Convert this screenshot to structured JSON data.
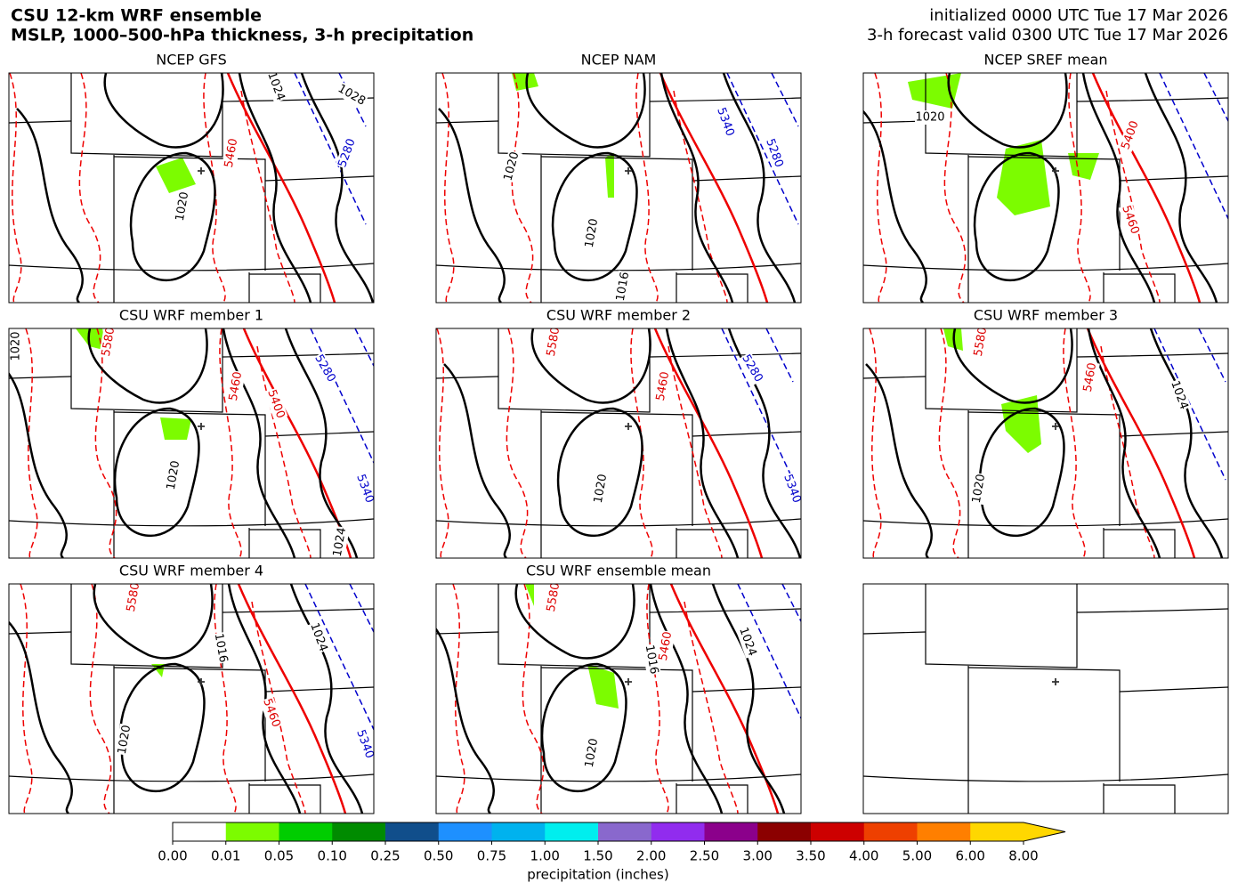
{
  "header": {
    "title": [
      "CSU 12-km WRF ensemble",
      "MSLP, 1000–500-hPa thickness, 3-h precipitation"
    ],
    "init": "initialized 0000 UTC Tue 17 Mar 2026",
    "valid": "3-h forecast valid 0300 UTC Tue 17 Mar 2026"
  },
  "panels": [
    {
      "title": "NCEP GFS",
      "labels": [
        "1024",
        "1028",
        "5280",
        "5460",
        "1020"
      ]
    },
    {
      "title": "NCEP NAM",
      "labels": [
        "5340",
        "5280",
        "1020",
        "1020",
        "1016"
      ]
    },
    {
      "title": "NCEP SREF mean",
      "labels": [
        "1020",
        "5400",
        "5460"
      ]
    },
    {
      "title": "CSU WRF member 1",
      "labels": [
        "1020",
        "5580",
        "5460",
        "5400",
        "5280",
        "1020",
        "5340",
        "1024"
      ]
    },
    {
      "title": "CSU WRF member 2",
      "labels": [
        "5580",
        "5460",
        "5280",
        "1020",
        "5340"
      ]
    },
    {
      "title": "CSU WRF member 3",
      "labels": [
        "5580",
        "5460",
        "1024",
        "1020"
      ]
    },
    {
      "title": "CSU WRF member 4",
      "labels": [
        "5580",
        "1016",
        "1024",
        "5460",
        "1020",
        "5340"
      ]
    },
    {
      "title": "CSU WRF ensemble mean",
      "labels": [
        "5580",
        "1016",
        "5460",
        "1024",
        "1020"
      ]
    }
  ],
  "colorbar": {
    "ticks": [
      "0.00",
      "0.01",
      "0.05",
      "0.10",
      "0.25",
      "0.50",
      "0.75",
      "1.00",
      "1.50",
      "2.00",
      "2.50",
      "3.00",
      "3.50",
      "4.00",
      "5.00",
      "6.00",
      "8.00"
    ],
    "colors": [
      "#ffffff",
      "#7cfc00",
      "#00cd00",
      "#008b00",
      "#104e8b",
      "#1e90ff",
      "#00b2ee",
      "#00eeee",
      "#8968cd",
      "#912cee",
      "#8b008b",
      "#8b0000",
      "#cd0000",
      "#ee4000",
      "#ff7f00",
      "#ffd700"
    ],
    "over_color": "#ffd700",
    "label": "precipitation (inches)"
  }
}
